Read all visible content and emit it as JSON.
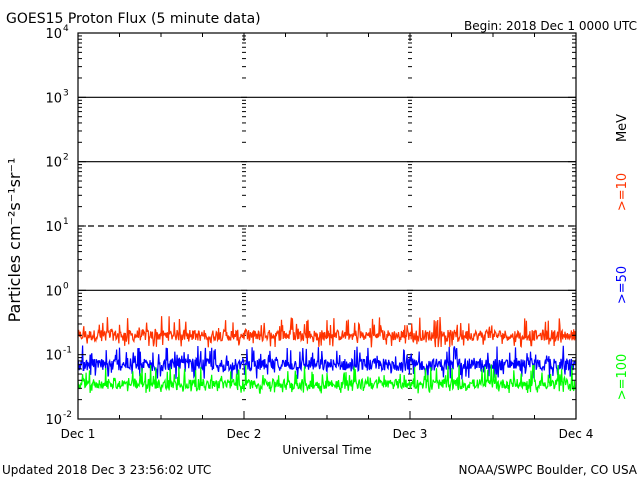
{
  "header": {
    "title": "GOES15 Proton Flux (5 minute data)",
    "begin": "Begin: 2018 Dec 1 0000 UTC"
  },
  "footer": {
    "updated": "Updated 2018 Dec  3 23:56:02 UTC",
    "credit": "NOAA/SWPC Boulder, CO USA"
  },
  "chart_data": {
    "type": "line",
    "title": "GOES15 Proton Flux (5 minute data)",
    "xlabel": "Universal Time",
    "ylabel": "Particles cm⁻²s⁻¹sr⁻¹",
    "y_scale": "log",
    "ylim": [
      0.01,
      10000
    ],
    "x_days": [
      "Dec 1",
      "Dec 2",
      "Dec 3",
      "Dec 4"
    ],
    "y_ticks": [
      {
        "base": "10",
        "exp": "-2"
      },
      {
        "base": "10",
        "exp": "-1"
      },
      {
        "base": "10",
        "exp": "0"
      },
      {
        "base": "10",
        "exp": "1"
      },
      {
        "base": "10",
        "exp": "2"
      },
      {
        "base": "10",
        "exp": "3"
      },
      {
        "base": "10",
        "exp": "4"
      }
    ],
    "reference_lines": [
      {
        "value": 1,
        "style": "solid"
      },
      {
        "value": 10,
        "style": "dashed"
      },
      {
        "value": 100,
        "style": "solid"
      },
      {
        "value": 1000,
        "style": "solid"
      }
    ],
    "energy_unit": "MeV",
    "series": [
      {
        "name": ">=10",
        "color": "#ff3300",
        "typical": 0.2,
        "range": [
          0.13,
          0.4
        ]
      },
      {
        "name": ">=50",
        "color": "#0000ff",
        "typical": 0.07,
        "range": [
          0.04,
          0.14
        ]
      },
      {
        "name": ">=100",
        "color": "#00ff00",
        "typical": 0.035,
        "range": [
          0.025,
          0.07
        ]
      }
    ]
  }
}
